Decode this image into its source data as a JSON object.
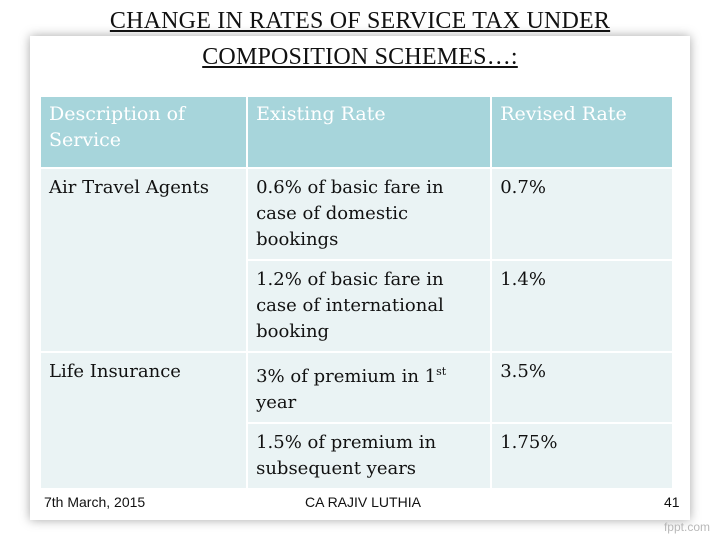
{
  "title": {
    "line1": "CHANGE IN RATES OF SERVICE TAX UNDER",
    "line2": "COMPOSITION SCHEMES…: "
  },
  "table": {
    "headers": [
      "Description of Service",
      "Existing Rate",
      "Revised Rate"
    ],
    "rows": [
      {
        "service": "Air Travel Agents",
        "existing": "0.6% of basic fare in case of domestic bookings",
        "revised": "0.7%"
      },
      {
        "service": "",
        "existing": "1.2% of basic fare in case of international booking",
        "revised": "1.4%"
      },
      {
        "service": "Life Insurance",
        "existing_main": "3% of premium in 1",
        "existing_sup": "st",
        "existing_tail": " year",
        "revised": "3.5%"
      },
      {
        "service": "",
        "existing": "1.5% of premium in subsequent years",
        "revised": "1.75%"
      }
    ]
  },
  "footer": {
    "date": "7th March, 2015",
    "author": "CA RAJIV LUTHIA",
    "page": "41"
  },
  "watermark": "fppt.com"
}
